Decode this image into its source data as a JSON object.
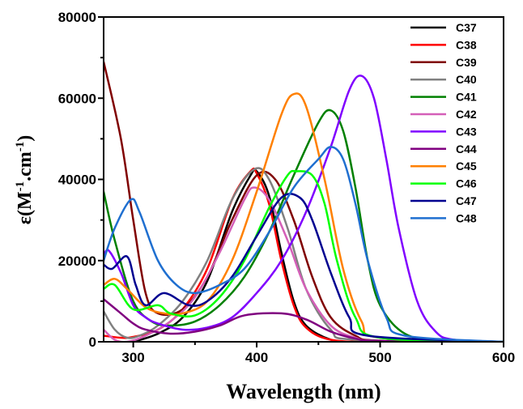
{
  "chart_data": {
    "type": "line",
    "xlabel": "Wavelength (nm)",
    "ylabel": {
      "base": "ε(M",
      "sup1": "-1",
      "mid": ".cm",
      "sup2": "-1",
      "end": ")"
    },
    "xlim": [
      276,
      600
    ],
    "ylim": [
      0,
      80000
    ],
    "xticks": [
      300,
      400,
      500,
      600
    ],
    "yticks": [
      0,
      20000,
      40000,
      60000,
      80000
    ],
    "legend_position": "top-right",
    "series": [
      {
        "name": "C37",
        "color": "#000000",
        "points": [
          [
            300,
            0
          ],
          [
            320,
            2000
          ],
          [
            340,
            6000
          ],
          [
            360,
            15000
          ],
          [
            380,
            32000
          ],
          [
            395,
            41000
          ],
          [
            400,
            42000
          ],
          [
            410,
            36000
          ],
          [
            420,
            22000
          ],
          [
            430,
            10000
          ],
          [
            440,
            4000
          ],
          [
            460,
            500
          ],
          [
            480,
            0
          ],
          [
            600,
            0
          ]
        ]
      },
      {
        "name": "C38",
        "color": "#ff0000",
        "points": [
          [
            276,
            1500
          ],
          [
            290,
            1000
          ],
          [
            300,
            1200
          ],
          [
            320,
            3000
          ],
          [
            340,
            8000
          ],
          [
            360,
            18000
          ],
          [
            380,
            35000
          ],
          [
            395,
            42000
          ],
          [
            400,
            41500
          ],
          [
            410,
            34000
          ],
          [
            420,
            20000
          ],
          [
            430,
            9000
          ],
          [
            440,
            3500
          ],
          [
            460,
            500
          ],
          [
            500,
            0
          ],
          [
            600,
            0
          ]
        ]
      },
      {
        "name": "C39",
        "color": "#800000",
        "points": [
          [
            276,
            69000
          ],
          [
            290,
            50000
          ],
          [
            300,
            30000
          ],
          [
            310,
            12000
          ],
          [
            320,
            7000
          ],
          [
            340,
            8000
          ],
          [
            360,
            16000
          ],
          [
            380,
            30000
          ],
          [
            400,
            41000
          ],
          [
            415,
            40000
          ],
          [
            430,
            30000
          ],
          [
            445,
            16000
          ],
          [
            460,
            6000
          ],
          [
            480,
            1500
          ],
          [
            500,
            300
          ],
          [
            600,
            0
          ]
        ]
      },
      {
        "name": "C40",
        "color": "#808080",
        "points": [
          [
            276,
            7500
          ],
          [
            285,
            3000
          ],
          [
            295,
            1000
          ],
          [
            305,
            1500
          ],
          [
            320,
            4000
          ],
          [
            340,
            10000
          ],
          [
            360,
            20000
          ],
          [
            380,
            35000
          ],
          [
            398,
            42500
          ],
          [
            410,
            40000
          ],
          [
            425,
            28000
          ],
          [
            440,
            13000
          ],
          [
            460,
            3000
          ],
          [
            480,
            500
          ],
          [
            600,
            0
          ]
        ]
      },
      {
        "name": "C41",
        "color": "#008000",
        "points": [
          [
            276,
            37000
          ],
          [
            285,
            25000
          ],
          [
            300,
            10000
          ],
          [
            315,
            5000
          ],
          [
            330,
            4000
          ],
          [
            350,
            5000
          ],
          [
            370,
            9000
          ],
          [
            390,
            16000
          ],
          [
            410,
            27000
          ],
          [
            430,
            41000
          ],
          [
            450,
            54000
          ],
          [
            460,
            57000
          ],
          [
            470,
            52000
          ],
          [
            480,
            38000
          ],
          [
            490,
            20000
          ],
          [
            500,
            9000
          ],
          [
            520,
            2000
          ],
          [
            550,
            200
          ],
          [
            600,
            0
          ]
        ]
      },
      {
        "name": "C42",
        "color": "#d45fb8",
        "points": [
          [
            276,
            3000
          ],
          [
            285,
            500
          ],
          [
            295,
            0
          ],
          [
            310,
            1500
          ],
          [
            330,
            5000
          ],
          [
            350,
            11000
          ],
          [
            370,
            22000
          ],
          [
            390,
            35000
          ],
          [
            398,
            38000
          ],
          [
            410,
            35000
          ],
          [
            425,
            25000
          ],
          [
            440,
            13000
          ],
          [
            460,
            4000
          ],
          [
            480,
            1000
          ],
          [
            500,
            200
          ],
          [
            600,
            0
          ]
        ]
      },
      {
        "name": "C43",
        "color": "#8000ff",
        "points": [
          [
            276,
            21000
          ],
          [
            280,
            22500
          ],
          [
            290,
            17000
          ],
          [
            300,
            9000
          ],
          [
            310,
            6000
          ],
          [
            320,
            4500
          ],
          [
            340,
            3000
          ],
          [
            360,
            3500
          ],
          [
            380,
            6000
          ],
          [
            400,
            12000
          ],
          [
            420,
            20000
          ],
          [
            440,
            32000
          ],
          [
            460,
            48000
          ],
          [
            475,
            62000
          ],
          [
            485,
            65500
          ],
          [
            495,
            60000
          ],
          [
            505,
            45000
          ],
          [
            515,
            28000
          ],
          [
            530,
            10000
          ],
          [
            545,
            2500
          ],
          [
            560,
            500
          ],
          [
            600,
            0
          ]
        ]
      },
      {
        "name": "C44",
        "color": "#800080",
        "points": [
          [
            276,
            10500
          ],
          [
            290,
            7000
          ],
          [
            300,
            4500
          ],
          [
            310,
            3000
          ],
          [
            330,
            2000
          ],
          [
            350,
            2500
          ],
          [
            370,
            4000
          ],
          [
            390,
            6500
          ],
          [
            420,
            7000
          ],
          [
            440,
            5500
          ],
          [
            460,
            2500
          ],
          [
            480,
            800
          ],
          [
            500,
            200
          ],
          [
            600,
            0
          ]
        ]
      },
      {
        "name": "C45",
        "color": "#ff8000",
        "points": [
          [
            276,
            14000
          ],
          [
            285,
            15500
          ],
          [
            295,
            13000
          ],
          [
            310,
            8500
          ],
          [
            325,
            7000
          ],
          [
            340,
            7000
          ],
          [
            360,
            10000
          ],
          [
            380,
            20000
          ],
          [
            400,
            37000
          ],
          [
            420,
            56000
          ],
          [
            430,
            61000
          ],
          [
            440,
            58000
          ],
          [
            455,
            40000
          ],
          [
            470,
            18000
          ],
          [
            485,
            5000
          ],
          [
            500,
            1000
          ],
          [
            600,
            0
          ]
        ]
      },
      {
        "name": "C46",
        "color": "#00ff00",
        "points": [
          [
            276,
            13000
          ],
          [
            285,
            14000
          ],
          [
            300,
            8000
          ],
          [
            320,
            9000
          ],
          [
            330,
            7000
          ],
          [
            350,
            6500
          ],
          [
            370,
            11000
          ],
          [
            390,
            20000
          ],
          [
            410,
            33000
          ],
          [
            425,
            41000
          ],
          [
            432,
            42000
          ],
          [
            445,
            41000
          ],
          [
            455,
            34000
          ],
          [
            465,
            20000
          ],
          [
            480,
            6000
          ],
          [
            500,
            1000
          ],
          [
            600,
            0
          ]
        ]
      },
      {
        "name": "C47",
        "color": "#000090",
        "points": [
          [
            276,
            19000
          ],
          [
            283,
            18000
          ],
          [
            295,
            21000
          ],
          [
            302,
            14000
          ],
          [
            310,
            9000
          ],
          [
            325,
            12000
          ],
          [
            345,
            9000
          ],
          [
            360,
            10000
          ],
          [
            380,
            16000
          ],
          [
            400,
            26000
          ],
          [
            420,
            35500
          ],
          [
            435,
            35500
          ],
          [
            445,
            30000
          ],
          [
            460,
            17000
          ],
          [
            475,
            6000
          ],
          [
            490,
            1500
          ],
          [
            600,
            0
          ]
        ]
      },
      {
        "name": "C48",
        "color": "#1f6fd0",
        "points": [
          [
            276,
            20000
          ],
          [
            285,
            28000
          ],
          [
            298,
            35000
          ],
          [
            305,
            32000
          ],
          [
            320,
            20000
          ],
          [
            335,
            14000
          ],
          [
            350,
            12000
          ],
          [
            370,
            14000
          ],
          [
            390,
            18000
          ],
          [
            410,
            27000
          ],
          [
            430,
            38000
          ],
          [
            450,
            45000
          ],
          [
            460,
            48000
          ],
          [
            470,
            45000
          ],
          [
            480,
            34000
          ],
          [
            490,
            20000
          ],
          [
            505,
            6000
          ],
          [
            520,
            1500
          ],
          [
            600,
            0
          ]
        ]
      }
    ]
  }
}
